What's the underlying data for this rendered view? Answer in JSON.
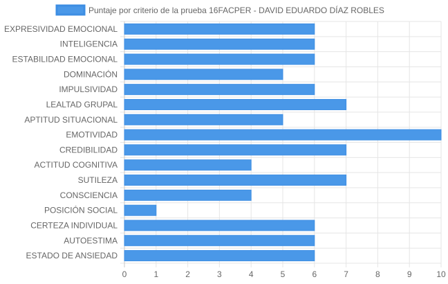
{
  "chart_data": {
    "type": "bar",
    "orientation": "horizontal",
    "legend": {
      "position": "top",
      "label": "Puntaje por criterio de la prueba 16FACPER - DAVID EDUARDO DÍAZ ROBLES"
    },
    "categories": [
      "EXPRESIVIDAD EMOCIONAL",
      "INTELIGENCIA",
      "ESTABILIDAD EMOCIONAL",
      "DOMINACIÓN",
      "IMPULSIVIDAD",
      "LEALTAD GRUPAL",
      "APTITUD SITUACIONAL",
      "EMOTIVIDAD",
      "CREDIBILIDAD",
      "ACTITUD COGNITIVA",
      "SUTILEZA",
      "CONSCIENCIA",
      "POSICIÓN SOCIAL",
      "CERTEZA INDIVIDUAL",
      "AUTOESTIMA",
      "ESTADO DE ANSIEDAD"
    ],
    "series": [
      {
        "name": "Puntaje por criterio de la prueba 16FACPER - DAVID EDUARDO DÍAZ ROBLES",
        "values": [
          6,
          6,
          6,
          5,
          6,
          7,
          5,
          10,
          7,
          4,
          7,
          4,
          1,
          6,
          6,
          6
        ]
      }
    ],
    "xlim": [
      0,
      10
    ],
    "x_ticks": [
      "0",
      "1",
      "2",
      "3",
      "4",
      "5",
      "6",
      "7",
      "8",
      "9",
      "10"
    ],
    "grid": true,
    "colors": {
      "bar_fill": "#4a98e8",
      "bar_stroke": "#3d8ee3",
      "grid": "#e5e5e5",
      "axis": "#c8c8c8",
      "text": "#666666"
    }
  }
}
